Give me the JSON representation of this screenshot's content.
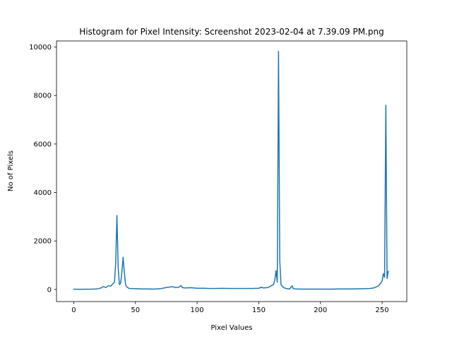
{
  "chart_data": {
    "type": "line",
    "title": "Histogram for Pixel Intensity: Screenshot 2023-02-04 at 7.39.09 PM.png",
    "xlabel": "Pixel Values",
    "ylabel": "No of Pixels",
    "xlim": [
      -14,
      270
    ],
    "ylim": [
      -500,
      10250
    ],
    "xticks": [
      0,
      50,
      100,
      150,
      200,
      250
    ],
    "yticks": [
      0,
      2000,
      4000,
      6000,
      8000,
      10000
    ],
    "grid": false,
    "series": [
      {
        "color": "#1f77b4",
        "points": [
          [
            0,
            10
          ],
          [
            5,
            5
          ],
          [
            10,
            10
          ],
          [
            15,
            12
          ],
          [
            18,
            20
          ],
          [
            20,
            30
          ],
          [
            22,
            60
          ],
          [
            24,
            120
          ],
          [
            26,
            80
          ],
          [
            28,
            150
          ],
          [
            30,
            140
          ],
          [
            32,
            250
          ],
          [
            33,
            300
          ],
          [
            34,
            1100
          ],
          [
            35,
            3050
          ],
          [
            36,
            900
          ],
          [
            37,
            200
          ],
          [
            38,
            250
          ],
          [
            39,
            700
          ],
          [
            40,
            1330
          ],
          [
            41,
            700
          ],
          [
            42,
            200
          ],
          [
            43,
            100
          ],
          [
            45,
            40
          ],
          [
            50,
            30
          ],
          [
            55,
            20
          ],
          [
            60,
            20
          ],
          [
            65,
            15
          ],
          [
            70,
            30
          ],
          [
            75,
            80
          ],
          [
            78,
            100
          ],
          [
            80,
            120
          ],
          [
            82,
            80
          ],
          [
            85,
            90
          ],
          [
            87,
            160
          ],
          [
            88,
            80
          ],
          [
            90,
            60
          ],
          [
            95,
            70
          ],
          [
            100,
            50
          ],
          [
            105,
            50
          ],
          [
            110,
            40
          ],
          [
            115,
            40
          ],
          [
            120,
            45
          ],
          [
            125,
            40
          ],
          [
            130,
            40
          ],
          [
            135,
            40
          ],
          [
            140,
            40
          ],
          [
            145,
            40
          ],
          [
            150,
            50
          ],
          [
            152,
            90
          ],
          [
            154,
            60
          ],
          [
            156,
            70
          ],
          [
            158,
            90
          ],
          [
            160,
            150
          ],
          [
            162,
            200
          ],
          [
            163,
            400
          ],
          [
            164,
            780
          ],
          [
            165,
            300
          ],
          [
            166,
            9820
          ],
          [
            167,
            1200
          ],
          [
            168,
            200
          ],
          [
            170,
            80
          ],
          [
            172,
            40
          ],
          [
            175,
            20
          ],
          [
            177,
            150
          ],
          [
            178,
            30
          ],
          [
            180,
            20
          ],
          [
            185,
            15
          ],
          [
            190,
            15
          ],
          [
            195,
            15
          ],
          [
            200,
            15
          ],
          [
            205,
            15
          ],
          [
            210,
            15
          ],
          [
            215,
            20
          ],
          [
            220,
            20
          ],
          [
            225,
            20
          ],
          [
            230,
            25
          ],
          [
            235,
            30
          ],
          [
            240,
            40
          ],
          [
            243,
            60
          ],
          [
            246,
            120
          ],
          [
            248,
            200
          ],
          [
            250,
            350
          ],
          [
            251,
            650
          ],
          [
            252,
            500
          ],
          [
            253,
            7600
          ],
          [
            254,
            450
          ],
          [
            255,
            750
          ]
        ]
      }
    ]
  }
}
